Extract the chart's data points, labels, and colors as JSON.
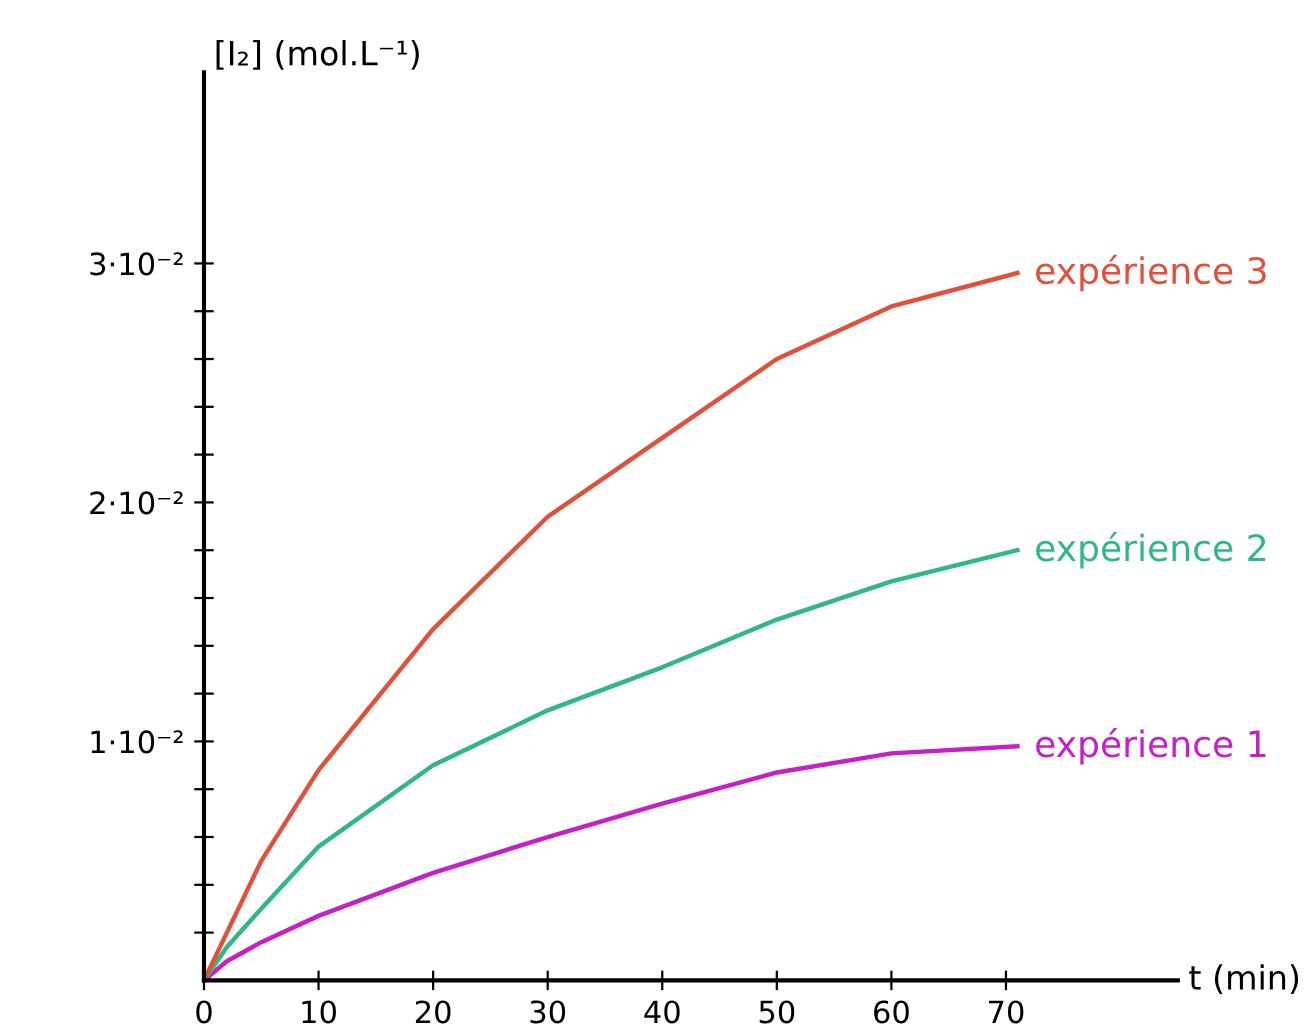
{
  "chart_data": {
    "type": "line",
    "xlabel": "t (min)",
    "ylabel": "[I₂] (mol.L⁻¹)",
    "xlim": [
      0,
      85
    ],
    "ylim": [
      0,
      0.038
    ],
    "xticks": [
      0,
      10,
      20,
      30,
      40,
      50,
      60,
      70
    ],
    "yticks": [
      {
        "value": 0.002,
        "label": null
      },
      {
        "value": 0.004,
        "label": null
      },
      {
        "value": 0.006,
        "label": null
      },
      {
        "value": 0.008,
        "label": null
      },
      {
        "value": 0.01,
        "label": "1·10⁻²"
      },
      {
        "value": 0.012,
        "label": null
      },
      {
        "value": 0.014,
        "label": null
      },
      {
        "value": 0.016,
        "label": null
      },
      {
        "value": 0.018,
        "label": null
      },
      {
        "value": 0.02,
        "label": "2·10⁻²"
      },
      {
        "value": 0.022,
        "label": null
      },
      {
        "value": 0.024,
        "label": null
      },
      {
        "value": 0.026,
        "label": null
      },
      {
        "value": 0.028,
        "label": null
      },
      {
        "value": 0.03,
        "label": "3·10⁻²"
      }
    ],
    "grid": false,
    "legend": false,
    "marker": "none",
    "line_style": "solid",
    "x": [
      0,
      2,
      5,
      10,
      20,
      30,
      40,
      50,
      60,
      71
    ],
    "series": [
      {
        "name": "expérience 1",
        "color": "#c81ec8",
        "values": [
          0,
          0.0008,
          0.0016,
          0.0027,
          0.0045,
          0.006,
          0.0074,
          0.0087,
          0.0095,
          0.0098
        ]
      },
      {
        "name": "expérience 2",
        "color": "#2fb884",
        "values": [
          0,
          0.0014,
          0.003,
          0.0056,
          0.009,
          0.0113,
          0.0131,
          0.0151,
          0.0167,
          0.018
        ]
      },
      {
        "name": "expérience 3",
        "color": "#e0503a",
        "values": [
          0,
          0.002,
          0.005,
          0.0088,
          0.0147,
          0.0194,
          0.0227,
          0.026,
          0.0282,
          0.0296
        ]
      }
    ]
  }
}
